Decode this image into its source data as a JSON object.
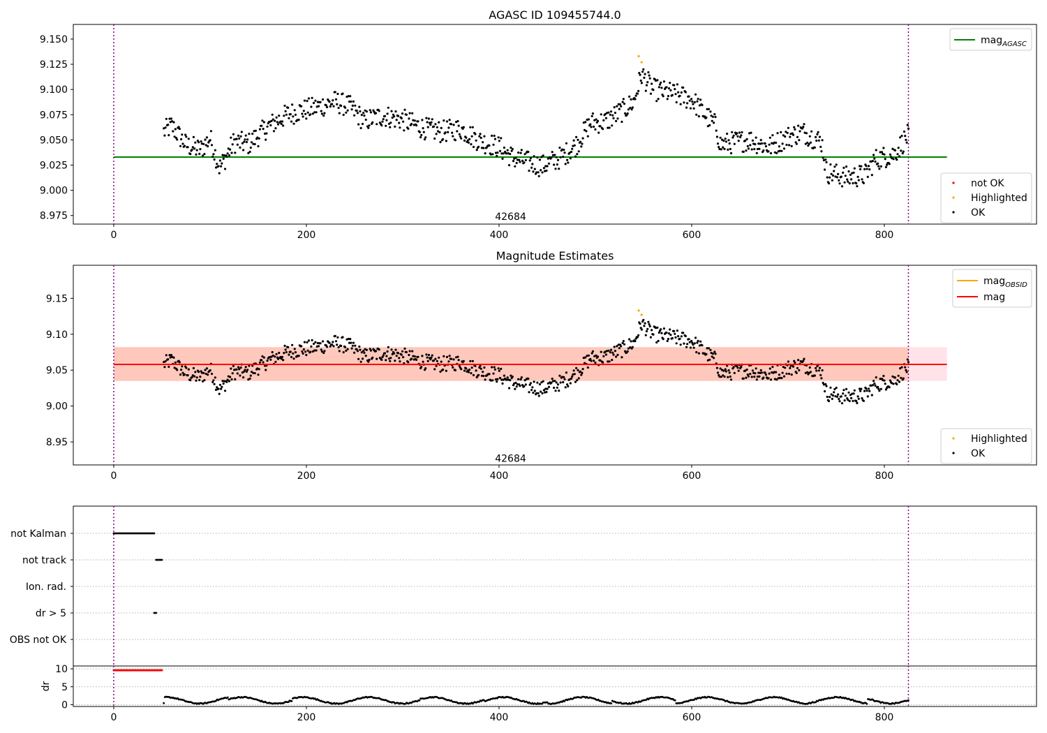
{
  "colors": {
    "ok": "#000000",
    "not_ok": "#ff0000",
    "highlighted": "#ffa500",
    "mag_agasc": "#008000",
    "mag": "#ff0000",
    "mag_obsid": "#ffa500",
    "band_outer": "#ffc0cb",
    "band_inner": "#ffa07a",
    "vline": "#800080",
    "grid": "#b0b0b0"
  },
  "chart_data": [
    {
      "type": "scatter",
      "title": "AGASC ID 109455744.0",
      "xlabel": "",
      "ylabel": "",
      "xlim": [
        -42,
        958
      ],
      "ylim": [
        8.9665,
        9.1645
      ],
      "xticks": [
        0,
        200,
        400,
        600,
        800
      ],
      "yticks": [
        8.975,
        9.0,
        9.025,
        9.05,
        9.075,
        9.1,
        9.125,
        9.15
      ],
      "ytick_labels": [
        "8.975",
        "9.000",
        "9.025",
        "9.050",
        "9.075",
        "9.100",
        "9.125",
        "9.150"
      ],
      "obsid_label": "42684",
      "obsid_label_x": 412,
      "obsid_label_y": 8.974,
      "obsid_bounds": [
        0,
        825
      ],
      "mag_agasc": 9.033,
      "mag_agasc_range": [
        0,
        865
      ],
      "legend_lines": [
        {
          "label": "mag",
          "sub": "AGASC",
          "color": "#008000"
        }
      ],
      "legend_points": [
        {
          "label": "not OK",
          "color": "#ff0000"
        },
        {
          "label": "Highlighted",
          "color": "#ffa500"
        },
        {
          "label": "OK",
          "color": "#000000"
        }
      ],
      "series": [
        {
          "name": "OK",
          "color": "#000000",
          "x_range": [
            52,
            825
          ],
          "curve": "mag"
        },
        {
          "name": "Highlighted",
          "color": "#ffa500",
          "x": [
            545,
            548
          ],
          "y": [
            9.133,
            9.127
          ]
        }
      ]
    },
    {
      "type": "scatter",
      "title": "Magnitude Estimates",
      "xlabel": "",
      "ylabel": "",
      "xlim": [
        -42,
        958
      ],
      "ylim": [
        8.918,
        9.196
      ],
      "xticks": [
        0,
        200,
        400,
        600,
        800
      ],
      "yticks": [
        8.95,
        9.0,
        9.05,
        9.1,
        9.15
      ],
      "ytick_labels": [
        "8.95",
        "9.00",
        "9.05",
        "9.10",
        "9.15"
      ],
      "obsid_label": "42684",
      "obsid_label_x": 412,
      "obsid_label_y": 8.927,
      "obsid_bounds": [
        0,
        825
      ],
      "mag": 9.058,
      "mag_range": [
        0,
        865
      ],
      "band_outer": [
        9.035,
        9.082
      ],
      "band_inner": [
        9.035,
        9.082
      ],
      "band_inner_range": [
        0,
        825
      ],
      "legend_lines": [
        {
          "label": "mag",
          "sub": "OBSID",
          "color": "#ffa500"
        },
        {
          "label": "mag",
          "sub": "",
          "color": "#ff0000"
        }
      ],
      "legend_points": [
        {
          "label": "Highlighted",
          "color": "#ffa500"
        },
        {
          "label": "OK",
          "color": "#000000"
        }
      ],
      "series": [
        {
          "name": "OK",
          "color": "#000000",
          "x_range": [
            52,
            825
          ],
          "curve": "mag"
        },
        {
          "name": "Highlighted",
          "color": "#ffa500",
          "x": [
            545,
            548
          ],
          "y": [
            9.133,
            9.127
          ]
        }
      ]
    },
    {
      "type": "scatter",
      "title": "",
      "xlabel": "",
      "ylabel": "",
      "xlim": [
        -42,
        958
      ],
      "xticks": [
        0,
        200,
        400,
        600,
        800
      ],
      "categories": [
        "not Kalman",
        "not track",
        "Ion. rad.",
        "dr > 5",
        "OBS not OK"
      ],
      "flags": [
        {
          "category": "not Kalman",
          "x_range": [
            0,
            42
          ]
        },
        {
          "category": "not track",
          "x_range": [
            44,
            50
          ]
        },
        {
          "category": "Ion. rad.",
          "x_range": []
        },
        {
          "category": "dr > 5",
          "x_range": [
            42,
            44
          ]
        },
        {
          "category": "OBS not OK",
          "x_range": []
        }
      ],
      "obsid_bounds": [
        0,
        825
      ]
    },
    {
      "type": "scatter",
      "title": "",
      "xlabel": "",
      "ylabel": "dr",
      "xlim": [
        -42,
        958
      ],
      "ylim": [
        -0.5,
        10.8
      ],
      "xticks": [
        0,
        200,
        400,
        600,
        800
      ],
      "yticks": [
        0,
        5,
        10
      ],
      "ytick_labels": [
        "0",
        "5",
        "10"
      ],
      "threshold": 5,
      "series": [
        {
          "name": "not OK",
          "color": "#ff0000",
          "x_range": [
            0,
            50
          ],
          "y": 9.6
        },
        {
          "name": "OK",
          "color": "#000000",
          "x_range": [
            52,
            825
          ],
          "curve": "dr"
        }
      ],
      "obsid_bounds": [
        0,
        825
      ]
    }
  ]
}
